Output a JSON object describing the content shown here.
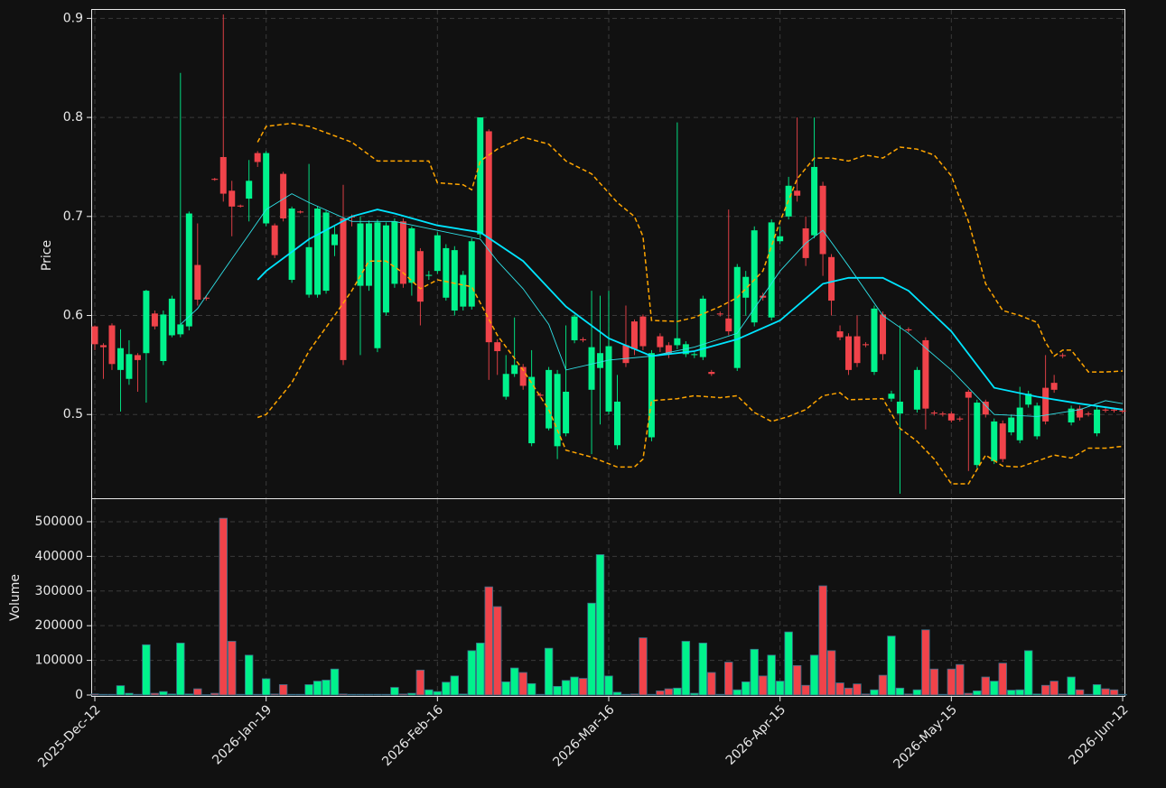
{
  "chart_data": {
    "type": "candlestick",
    "ylabel": "Price",
    "categories": [
      "2025-Dec-12",
      null,
      null,
      null,
      null,
      null,
      null,
      null,
      null,
      null,
      null,
      null,
      null,
      null,
      null,
      null,
      null,
      null,
      null,
      null,
      "2026-Jan-19",
      null,
      null,
      null,
      null,
      null,
      null,
      null,
      null,
      null,
      null,
      null,
      null,
      null,
      null,
      null,
      null,
      null,
      null,
      null,
      "2026-Feb-16",
      null,
      null,
      null,
      null,
      null,
      null,
      null,
      null,
      null,
      null,
      null,
      null,
      null,
      null,
      null,
      null,
      null,
      null,
      null,
      "2026-Mar-16",
      null,
      null,
      null,
      null,
      null,
      null,
      null,
      null,
      null,
      null,
      null,
      null,
      null,
      null,
      null,
      null,
      null,
      null,
      null,
      "2026-Apr-15",
      null,
      null,
      null,
      null,
      null,
      null,
      null,
      null,
      null,
      null,
      null,
      null,
      null,
      null,
      null,
      null,
      null,
      null,
      null,
      "2026-May-15",
      null,
      null,
      null,
      null,
      null,
      null,
      null,
      null,
      null,
      null,
      null,
      null,
      null,
      null,
      null,
      null,
      null,
      null,
      null,
      "2026-Jun-12"
    ],
    "open": [
      0.589,
      0.57,
      0.59,
      0.545,
      0.536,
      0.56,
      0.562,
      0.602,
      0.554,
      0.58,
      0.581,
      0.589,
      0.651,
      0.618,
      0.738,
      0.76,
      0.726,
      0.711,
      0.718,
      0.764,
      0.693,
      0.691,
      0.743,
      0.636,
      0.705,
      0.621,
      0.621,
      0.625,
      0.671,
      0.698,
      0.7,
      0.63,
      0.63,
      0.567,
      0.603,
      0.632,
      0.695,
      0.633,
      0.665,
      0.64,
      0.645,
      0.618,
      0.605,
      0.609,
      0.609,
      0.682,
      0.786,
      0.573,
      0.518,
      0.541,
      0.548,
      0.471,
      0.52,
      0.486,
      0.468,
      0.481,
      0.575,
      0.576,
      0.525,
      0.547,
      0.503,
      0.469,
      0.57,
      0.594,
      0.599,
      0.477,
      0.579,
      0.57,
      0.57,
      0.561,
      0.56,
      0.558,
      0.543,
      0.602,
      0.597,
      0.547,
      0.618,
      0.593,
      0.62,
      0.598,
      0.675,
      0.7,
      0.726,
      0.688,
      0.681,
      0.731,
      0.659,
      0.584,
      0.579,
      0.579,
      0.571,
      0.543,
      0.601,
      0.516,
      0.501,
      0.586,
      0.505,
      0.575,
      0.502,
      0.501,
      0.501,
      0.496,
      0.523,
      0.449,
      0.513,
      0.453,
      0.491,
      0.482,
      0.474,
      0.51,
      0.478,
      0.527,
      0.532,
      0.56,
      0.492,
      0.506,
      0.501,
      0.481,
      0.505,
      0.505,
      0.504
    ],
    "high": [
      0.59,
      0.572,
      0.592,
      0.586,
      0.575,
      0.562,
      0.626,
      0.605,
      0.605,
      0.62,
      0.845,
      0.705,
      0.693,
      0.62,
      0.739,
      0.904,
      0.736,
      0.712,
      0.757,
      0.766,
      0.766,
      0.693,
      0.745,
      0.71,
      0.706,
      0.753,
      0.71,
      0.706,
      0.69,
      0.732,
      0.702,
      0.7,
      0.696,
      0.697,
      0.694,
      0.698,
      0.698,
      0.69,
      0.668,
      0.645,
      0.684,
      0.672,
      0.67,
      0.645,
      0.678,
      0.8,
      0.788,
      0.576,
      0.56,
      0.598,
      0.551,
      0.565,
      0.522,
      0.548,
      0.545,
      0.59,
      0.601,
      0.578,
      0.625,
      0.62,
      0.625,
      0.54,
      0.61,
      0.596,
      0.601,
      0.565,
      0.582,
      0.573,
      0.795,
      0.574,
      0.563,
      0.62,
      0.545,
      0.604,
      0.707,
      0.652,
      0.645,
      0.69,
      0.623,
      0.697,
      0.69,
      0.74,
      0.8,
      0.7,
      0.8,
      0.735,
      0.662,
      0.59,
      0.582,
      0.6,
      0.573,
      0.61,
      0.604,
      0.524,
      0.59,
      0.588,
      0.548,
      0.578,
      0.504,
      0.503,
      0.503,
      0.498,
      0.525,
      0.515,
      0.515,
      0.496,
      0.494,
      0.5,
      0.528,
      0.524,
      0.512,
      0.56,
      0.54,
      0.562,
      0.509,
      0.509,
      0.503,
      0.508,
      0.507,
      0.507,
      0.506
    ],
    "low": [
      0.565,
      0.536,
      0.545,
      0.503,
      0.53,
      0.523,
      0.512,
      0.586,
      0.55,
      0.578,
      0.578,
      0.585,
      0.61,
      0.615,
      0.736,
      0.715,
      0.68,
      0.709,
      0.695,
      0.75,
      0.69,
      0.658,
      0.695,
      0.633,
      0.703,
      0.618,
      0.618,
      0.622,
      0.66,
      0.55,
      0.69,
      0.56,
      0.625,
      0.563,
      0.6,
      0.628,
      0.628,
      0.62,
      0.59,
      0.636,
      0.642,
      0.615,
      0.6,
      0.605,
      0.606,
      0.678,
      0.535,
      0.54,
      0.515,
      0.538,
      0.525,
      0.468,
      0.517,
      0.484,
      0.455,
      0.478,
      0.572,
      0.573,
      0.46,
      0.49,
      0.5,
      0.465,
      0.548,
      0.56,
      0.565,
      0.473,
      0.563,
      0.557,
      0.566,
      0.558,
      0.557,
      0.555,
      0.539,
      0.599,
      0.58,
      0.544,
      0.6,
      0.589,
      0.615,
      0.595,
      0.672,
      0.697,
      0.715,
      0.65,
      0.678,
      0.64,
      0.6,
      0.575,
      0.54,
      0.548,
      0.568,
      0.54,
      0.555,
      0.513,
      0.42,
      0.583,
      0.502,
      0.485,
      0.499,
      0.498,
      0.492,
      0.493,
      0.443,
      0.446,
      0.497,
      0.45,
      0.452,
      0.479,
      0.471,
      0.507,
      0.475,
      0.49,
      0.522,
      0.557,
      0.489,
      0.494,
      0.498,
      0.478,
      0.502,
      0.502,
      0.501
    ],
    "close": [
      0.571,
      0.568,
      0.551,
      0.567,
      0.561,
      0.555,
      0.625,
      0.589,
      0.601,
      0.617,
      0.591,
      0.703,
      0.616,
      0.617,
      0.737,
      0.723,
      0.71,
      0.71,
      0.736,
      0.755,
      0.764,
      0.661,
      0.698,
      0.708,
      0.704,
      0.669,
      0.708,
      0.704,
      0.682,
      0.555,
      0.699,
      0.693,
      0.693,
      0.694,
      0.691,
      0.695,
      0.632,
      0.688,
      0.614,
      0.641,
      0.681,
      0.668,
      0.666,
      0.641,
      0.675,
      0.8,
      0.573,
      0.564,
      0.541,
      0.55,
      0.529,
      0.538,
      0.519,
      0.545,
      0.541,
      0.523,
      0.599,
      0.575,
      0.568,
      0.562,
      0.569,
      0.513,
      0.552,
      0.566,
      0.569,
      0.562,
      0.568,
      0.561,
      0.577,
      0.571,
      0.561,
      0.617,
      0.541,
      0.601,
      0.584,
      0.649,
      0.639,
      0.686,
      0.618,
      0.694,
      0.68,
      0.731,
      0.721,
      0.658,
      0.75,
      0.662,
      0.615,
      0.578,
      0.545,
      0.552,
      0.57,
      0.607,
      0.561,
      0.521,
      0.513,
      0.585,
      0.545,
      0.506,
      0.501,
      0.5,
      0.494,
      0.495,
      0.517,
      0.512,
      0.5,
      0.493,
      0.455,
      0.497,
      0.507,
      0.521,
      0.509,
      0.493,
      0.525,
      0.559,
      0.506,
      0.497,
      0.5,
      0.505,
      0.504,
      0.504,
      0.503
    ],
    "up_color": "#00f28c",
    "down_color": "#f0434a",
    "ylim": [
      0.415,
      0.909
    ],
    "yticks": [
      0.5,
      0.6,
      0.7,
      0.8,
      0.9
    ],
    "grid": true,
    "lines": [
      {
        "color": "#2fe0e6",
        "width": 0.9,
        "style": "solid",
        "x": [
          10,
          12,
          15,
          18,
          20,
          23,
          25,
          30,
          35,
          40,
          45,
          47,
          50,
          53,
          55,
          60,
          65,
          70,
          75,
          80,
          83,
          85,
          88,
          92,
          95,
          100,
          105,
          110,
          115,
          118,
          120
        ],
        "values": [
          0.591,
          0.607,
          0.645,
          0.682,
          0.707,
          0.723,
          0.714,
          0.695,
          0.695,
          0.686,
          0.677,
          0.655,
          0.627,
          0.591,
          0.545,
          0.555,
          0.559,
          0.568,
          0.582,
          0.645,
          0.673,
          0.686,
          0.65,
          0.6,
          0.582,
          0.545,
          0.5,
          0.498,
          0.505,
          0.514,
          0.511
        ]
      },
      {
        "color": "#00e5ff",
        "width": 1.8,
        "style": "solid",
        "x": [
          19,
          20,
          25,
          30,
          33,
          35,
          40,
          45,
          50,
          55,
          60,
          65,
          70,
          75,
          80,
          85,
          88,
          92,
          95,
          100,
          105,
          110,
          115,
          120
        ],
        "values": [
          0.636,
          0.645,
          0.677,
          0.7,
          0.707,
          0.703,
          0.691,
          0.684,
          0.655,
          0.609,
          0.577,
          0.559,
          0.564,
          0.576,
          0.595,
          0.632,
          0.638,
          0.638,
          0.625,
          0.584,
          0.527,
          0.518,
          0.511,
          0.505
        ]
      },
      {
        "color": "#ffa500",
        "width": 1.5,
        "style": "dashed",
        "x": [
          19,
          20,
          23,
          25,
          30,
          33,
          36,
          39,
          40,
          43,
          44,
          45,
          47,
          50,
          53,
          55,
          58,
          61,
          63,
          64,
          65,
          68,
          70,
          73,
          75,
          78,
          80,
          82,
          84,
          86,
          88,
          90,
          92,
          94,
          96,
          98,
          100,
          102,
          104,
          106,
          108,
          110,
          111,
          112,
          113,
          114,
          116,
          118,
          120
        ],
        "values": [
          0.775,
          0.791,
          0.794,
          0.791,
          0.775,
          0.756,
          0.756,
          0.756,
          0.734,
          0.732,
          0.727,
          0.756,
          0.768,
          0.78,
          0.773,
          0.756,
          0.743,
          0.714,
          0.7,
          0.68,
          0.595,
          0.594,
          0.598,
          0.609,
          0.618,
          0.645,
          0.695,
          0.738,
          0.759,
          0.759,
          0.756,
          0.762,
          0.759,
          0.77,
          0.768,
          0.762,
          0.741,
          0.695,
          0.632,
          0.605,
          0.6,
          0.593,
          0.573,
          0.559,
          0.565,
          0.565,
          0.543,
          0.543,
          0.544
        ]
      },
      {
        "color": "#ffa500",
        "width": 1.5,
        "style": "dashed",
        "x": [
          19,
          20,
          23,
          25,
          28,
          30,
          32,
          34,
          36,
          38,
          40,
          44,
          47,
          50,
          53,
          55,
          58,
          61,
          63,
          64,
          65,
          68,
          70,
          73,
          75,
          77,
          79,
          81,
          83,
          85,
          87,
          88,
          92,
          94,
          96,
          98,
          100,
          102,
          104,
          106,
          108,
          110,
          112,
          114,
          116,
          118,
          120
        ],
        "values": [
          0.497,
          0.5,
          0.532,
          0.564,
          0.6,
          0.625,
          0.655,
          0.655,
          0.643,
          0.627,
          0.636,
          0.629,
          0.58,
          0.545,
          0.505,
          0.464,
          0.457,
          0.447,
          0.447,
          0.455,
          0.514,
          0.516,
          0.519,
          0.517,
          0.519,
          0.502,
          0.493,
          0.498,
          0.505,
          0.519,
          0.522,
          0.515,
          0.516,
          0.486,
          0.473,
          0.455,
          0.43,
          0.43,
          0.459,
          0.448,
          0.447,
          0.453,
          0.459,
          0.456,
          0.466,
          0.466,
          0.468
        ]
      }
    ],
    "volume": {
      "ylabel": "Volume",
      "values": [
        3000,
        2000,
        2000,
        27000,
        5000,
        2000,
        145000,
        5000,
        10000,
        3000,
        150000,
        3000,
        18000,
        1000,
        5000,
        510000,
        155000,
        2000,
        115000,
        2000,
        47000,
        3000,
        30000,
        2000,
        2000,
        30000,
        40000,
        43000,
        75000,
        3000,
        2000,
        2000,
        2000,
        2000,
        2000,
        22000,
        3000,
        5000,
        72000,
        15000,
        10000,
        37000,
        55000,
        3000,
        128000,
        150000,
        312000,
        255000,
        38000,
        78000,
        65000,
        33000,
        2000,
        135000,
        25000,
        42000,
        52000,
        48000,
        265000,
        405000,
        55000,
        8000,
        2000,
        3000,
        165000,
        2000,
        12000,
        18000,
        20000,
        155000,
        5000,
        150000,
        65000,
        2000,
        95000,
        15000,
        38000,
        132000,
        55000,
        115000,
        40000,
        182000,
        85000,
        28000,
        115000,
        315000,
        128000,
        35000,
        20000,
        32000,
        3000,
        15000,
        57000,
        170000,
        20000,
        3000,
        15000,
        188000,
        75000,
        2000,
        75000,
        88000,
        5000,
        12000,
        52000,
        40000,
        92000,
        14000,
        15000,
        128000,
        3000,
        28000,
        40000,
        3000,
        52000,
        15000,
        2000,
        30000,
        18000,
        15000,
        2000
      ],
      "ylim": [
        0,
        565000
      ],
      "yticks": [
        0,
        100000,
        200000,
        300000,
        400000,
        500000
      ]
    }
  }
}
